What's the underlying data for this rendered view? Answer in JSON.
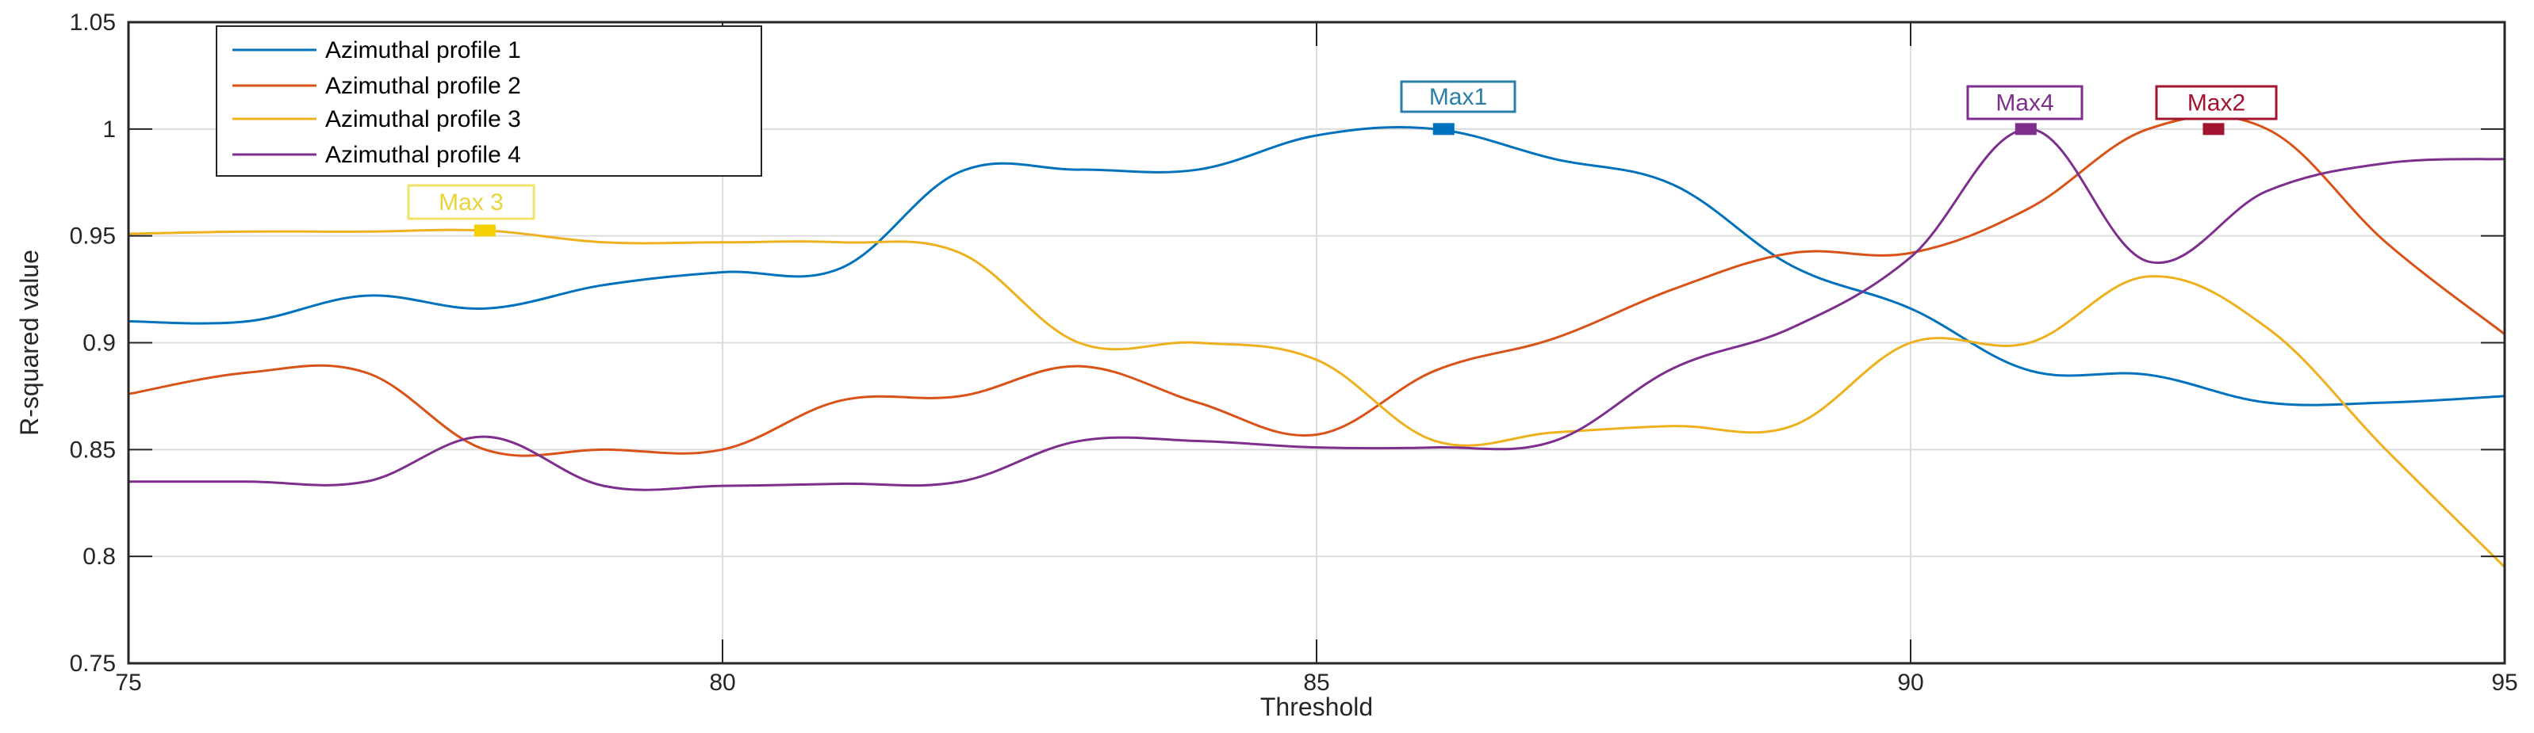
{
  "chart_data": {
    "type": "line",
    "title": "",
    "xlabel": "Threshold",
    "ylabel": "R-squared value",
    "xlim": [
      75,
      95
    ],
    "ylim": [
      0.75,
      1.05
    ],
    "xticks": [
      75,
      80,
      85,
      90,
      95
    ],
    "xtick_labels": [
      "75",
      "80",
      "85",
      "90",
      "95"
    ],
    "yticks": [
      0.75,
      0.8,
      0.85,
      0.9,
      0.95,
      1,
      1.05
    ],
    "ytick_labels": [
      "0.75",
      "0.8",
      "0.85",
      "0.9",
      "0.95",
      "1",
      "1.05"
    ],
    "grid": true,
    "legend_position": "upper-left (inside)",
    "x": [
      75,
      76,
      77,
      78,
      79,
      80,
      81,
      82,
      83,
      84,
      85,
      86,
      87,
      88,
      89,
      90,
      91,
      92,
      93,
      94,
      95
    ],
    "series": [
      {
        "name": "Azimuthal profile 1",
        "color": "#0072BD",
        "values": [
          0.91,
          0.91,
          0.922,
          0.916,
          0.927,
          0.933,
          0.935,
          0.98,
          0.981,
          0.981,
          0.997,
          1.0,
          0.986,
          0.974,
          0.936,
          0.916,
          0.887,
          0.885,
          0.872,
          0.872,
          0.875
        ]
      },
      {
        "name": "Azimuthal profile 2",
        "color": "#D95319",
        "values": [
          0.876,
          0.886,
          0.886,
          0.85,
          0.85,
          0.85,
          0.873,
          0.875,
          0.889,
          0.872,
          0.857,
          0.887,
          0.902,
          0.925,
          0.942,
          0.942,
          0.963,
          1.0,
          1.0,
          0.947,
          0.904
        ]
      },
      {
        "name": "Azimuthal profile 3",
        "color": "#EDB120",
        "values": [
          0.951,
          0.952,
          0.952,
          0.9525,
          0.947,
          0.947,
          0.947,
          0.942,
          0.9,
          0.9,
          0.892,
          0.854,
          0.858,
          0.861,
          0.861,
          0.9,
          0.9,
          0.931,
          0.907,
          0.85,
          0.795
        ]
      },
      {
        "name": "Azimuthal profile 4",
        "color": "#7E2F8E",
        "values": [
          0.835,
          0.835,
          0.835,
          0.856,
          0.833,
          0.833,
          0.834,
          0.835,
          0.854,
          0.854,
          0.851,
          0.851,
          0.854,
          0.888,
          0.907,
          0.94,
          1.0,
          0.938,
          0.971,
          0.984,
          0.986
        ]
      }
    ],
    "annotations": [
      {
        "label": "Max1",
        "series": "Azimuthal profile 1",
        "x": 86.07,
        "y": 1.0,
        "color": "#0072BD",
        "text_color": "#2A7FA8",
        "box_color": "#2A7FA8"
      },
      {
        "label": "Max2",
        "series": "Azimuthal profile 2",
        "x": 92.55,
        "y": 1.0,
        "color": "#A2142F",
        "text_color": "#A2142F",
        "box_color": "#A2142F"
      },
      {
        "label": "Max 3",
        "series": "Azimuthal profile 3",
        "x": 78.0,
        "y": 0.9525,
        "color": "#F5D000",
        "text_color": "#E8D43A",
        "box_color": "#EFE36A"
      },
      {
        "label": "Max4",
        "series": "Azimuthal profile 4",
        "x": 90.97,
        "y": 1.0,
        "color": "#7E2F8E",
        "text_color": "#7E2F8E",
        "box_color": "#7E2F8E"
      }
    ]
  }
}
